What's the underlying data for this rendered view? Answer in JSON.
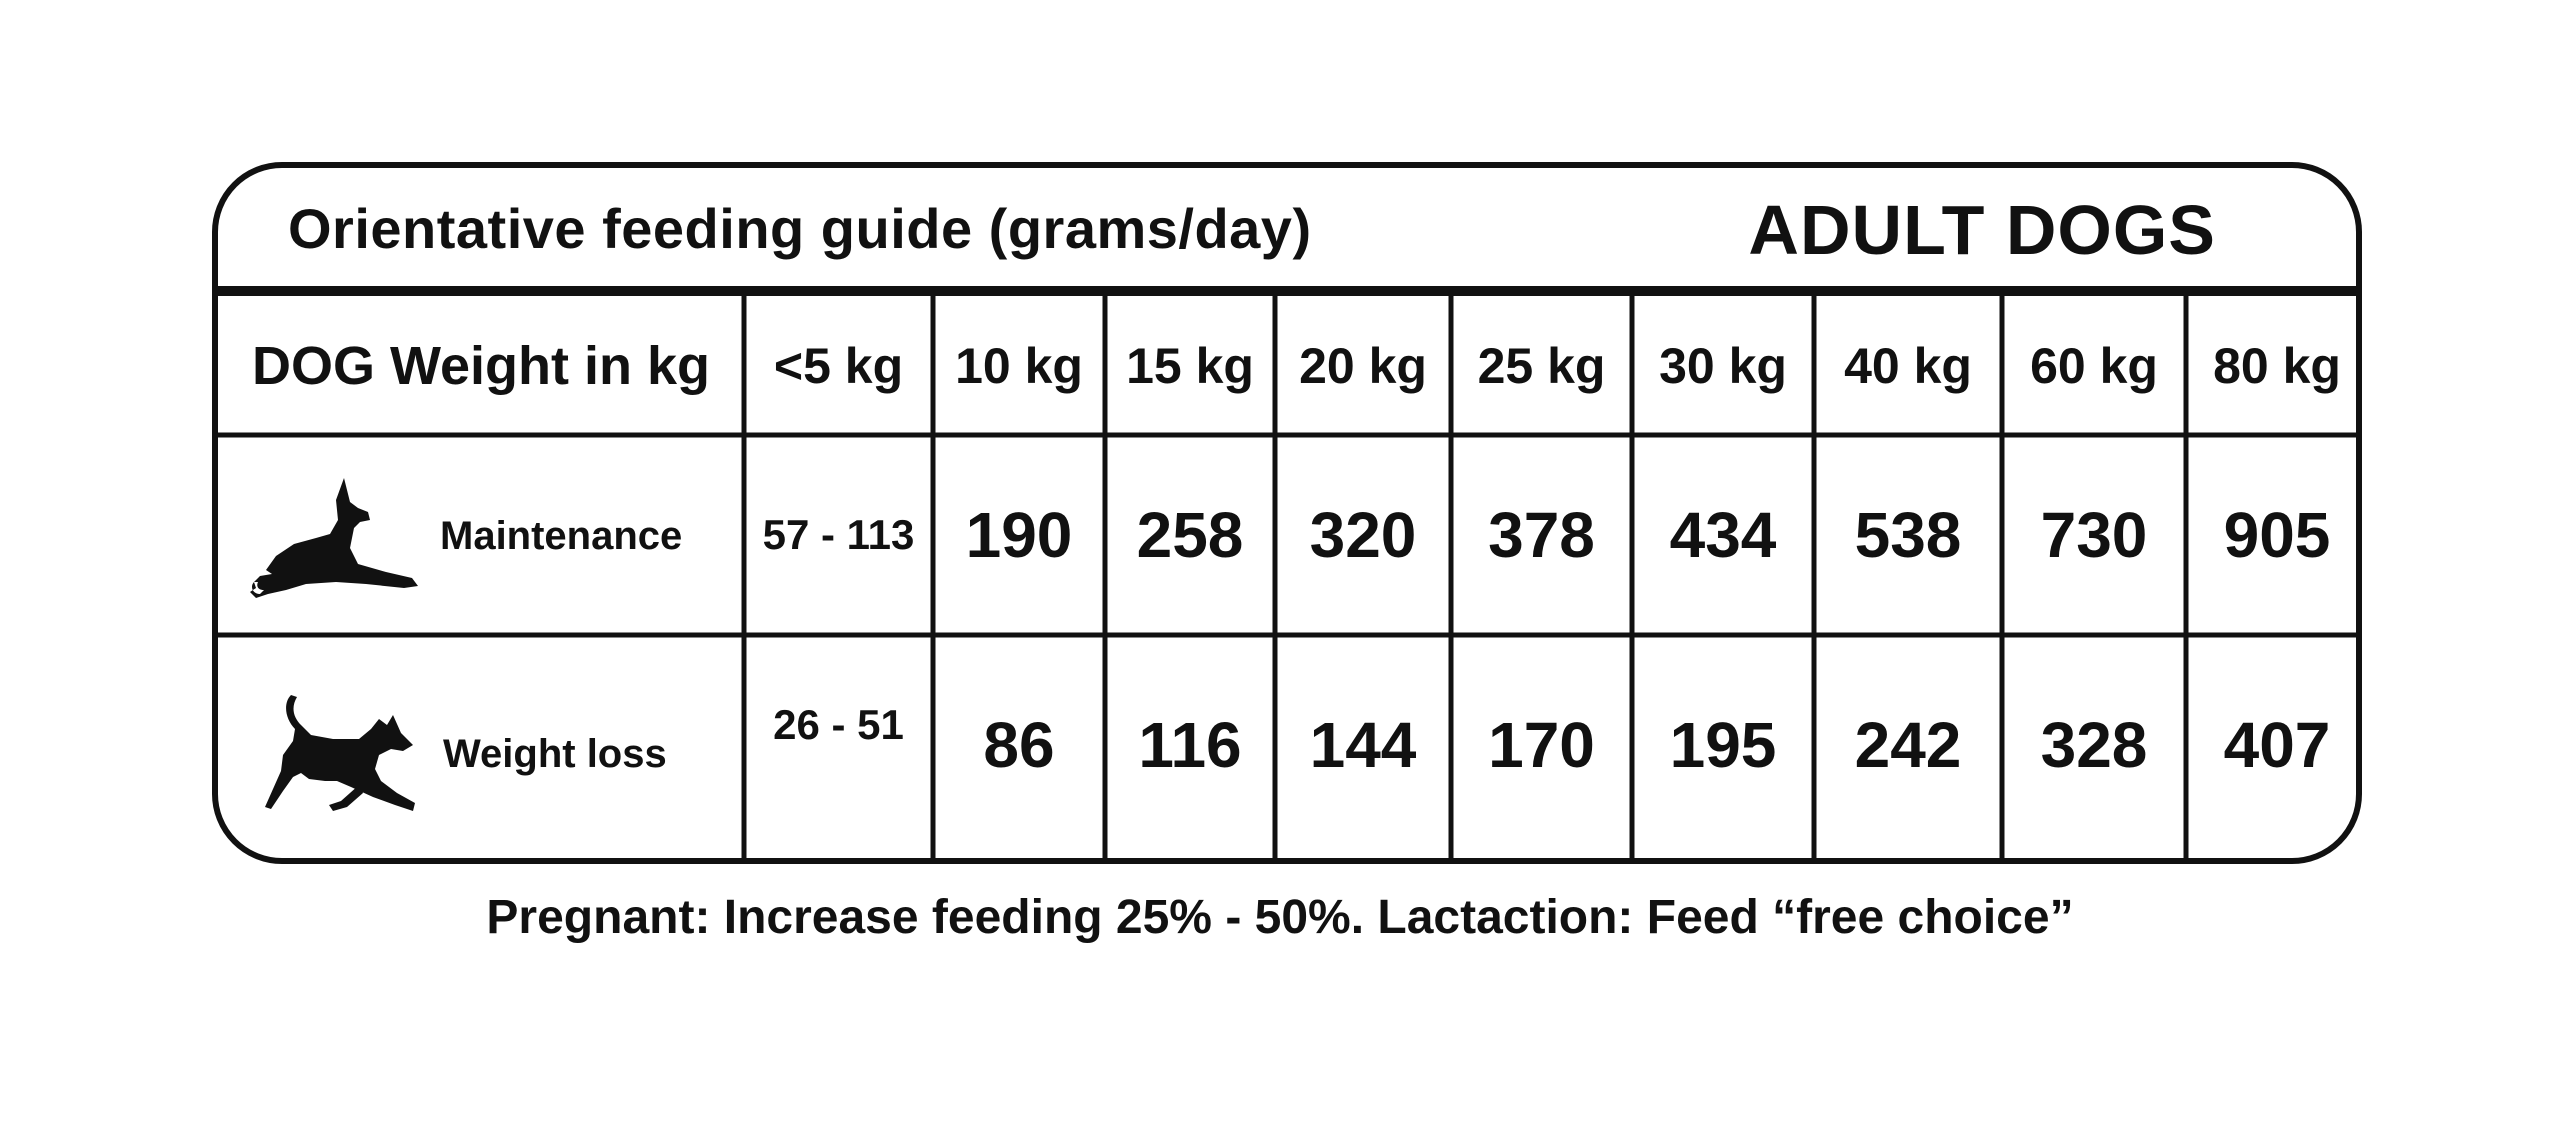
{
  "card": {
    "title": "Orientative feeding guide (grams/day)",
    "badge": "ADULT DOGS"
  },
  "table": {
    "row_header": "DOG Weight in kg",
    "columns": [
      "<5 kg",
      "10 kg",
      "15 kg",
      "20 kg",
      "25 kg",
      "30 kg",
      "40 kg",
      "60 kg",
      "80 kg"
    ],
    "rows": [
      {
        "label": "Maintenance",
        "icon": "lying-dog-icon",
        "values": [
          "57 - 113",
          "190",
          "258",
          "320",
          "378",
          "434",
          "538",
          "730",
          "905"
        ]
      },
      {
        "label": "Weight loss",
        "icon": "running-dog-icon",
        "values": [
          "26 - 51",
          "86",
          "116",
          "144",
          "170",
          "195",
          "242",
          "328",
          "407"
        ]
      }
    ]
  },
  "footnote": "Pregnant: Increase feeding 25% - 50%. Lactaction: Feed “free choice”",
  "colors": {
    "ink": "#111111",
    "background": "#ffffff"
  }
}
